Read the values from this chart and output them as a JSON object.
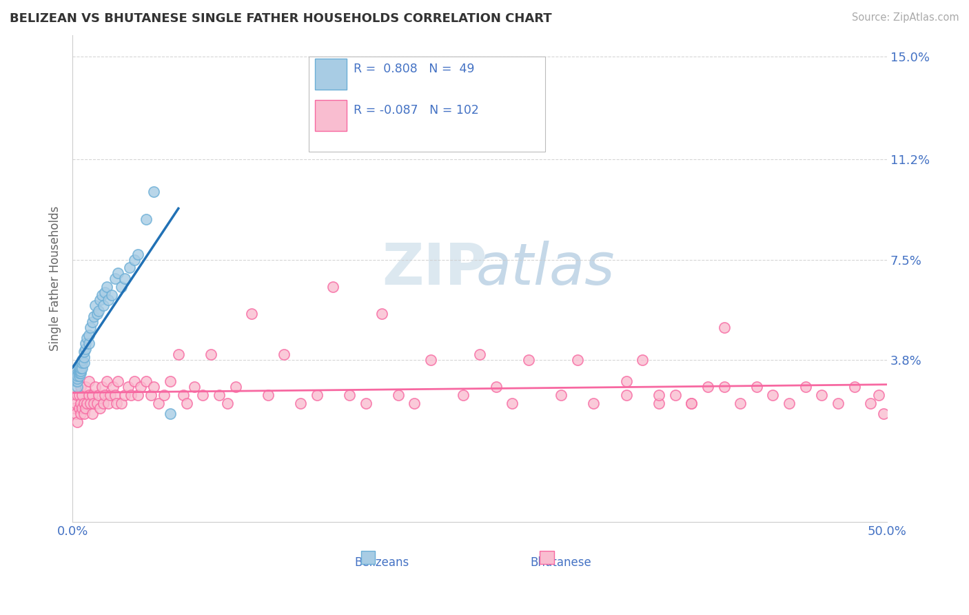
{
  "title": "BELIZEAN VS BHUTANESE SINGLE FATHER HOUSEHOLDS CORRELATION CHART",
  "source": "Source: ZipAtlas.com",
  "ylabel": "Single Father Households",
  "xlim": [
    0.0,
    0.5
  ],
  "ylim": [
    -0.022,
    0.158
  ],
  "belizean_R": 0.808,
  "belizean_N": 49,
  "bhutanese_R": -0.087,
  "bhutanese_N": 102,
  "belizean_color": "#a8cce4",
  "belizean_edge_color": "#6baed6",
  "bhutanese_color": "#f9bdd0",
  "bhutanese_edge_color": "#f768a1",
  "belizean_line_color": "#2171b5",
  "bhutanese_line_color": "#f768a1",
  "watermark_zip": "ZIP",
  "watermark_atlas": "atlas",
  "watermark_color": "#dce8f0",
  "watermark_atlas_color": "#c5d8e8",
  "legend_blue_label": "Belizeans",
  "legend_pink_label": "Bhutanese",
  "background_color": "#ffffff",
  "grid_color": "#cccccc",
  "title_color": "#333333",
  "axis_label_color": "#4472c4",
  "ytick_vals": [
    0.038,
    0.075,
    0.112,
    0.15
  ],
  "ytick_labels": [
    "3.8%",
    "7.5%",
    "11.2%",
    "15.0%"
  ],
  "xtick_vals": [
    0.0,
    0.5
  ],
  "xtick_labels": [
    "0.0%",
    "50.0%"
  ],
  "belizean_x": [
    0.002,
    0.002,
    0.002,
    0.003,
    0.003,
    0.003,
    0.003,
    0.003,
    0.004,
    0.004,
    0.004,
    0.004,
    0.005,
    0.005,
    0.005,
    0.006,
    0.006,
    0.006,
    0.007,
    0.007,
    0.007,
    0.008,
    0.008,
    0.009,
    0.01,
    0.01,
    0.011,
    0.012,
    0.013,
    0.014,
    0.015,
    0.016,
    0.017,
    0.018,
    0.019,
    0.02,
    0.021,
    0.022,
    0.024,
    0.026,
    0.028,
    0.03,
    0.032,
    0.035,
    0.038,
    0.04,
    0.045,
    0.05,
    0.06
  ],
  "belizean_y": [
    0.03,
    0.031,
    0.032,
    0.028,
    0.03,
    0.031,
    0.033,
    0.032,
    0.032,
    0.033,
    0.034,
    0.035,
    0.033,
    0.034,
    0.035,
    0.035,
    0.037,
    0.038,
    0.037,
    0.039,
    0.041,
    0.042,
    0.044,
    0.046,
    0.044,
    0.047,
    0.05,
    0.052,
    0.054,
    0.058,
    0.055,
    0.056,
    0.06,
    0.062,
    0.058,
    0.063,
    0.065,
    0.06,
    0.062,
    0.068,
    0.07,
    0.065,
    0.068,
    0.072,
    0.075,
    0.077,
    0.09,
    0.1,
    0.018
  ],
  "bhutanese_x": [
    0.001,
    0.002,
    0.002,
    0.003,
    0.003,
    0.003,
    0.004,
    0.004,
    0.005,
    0.005,
    0.005,
    0.006,
    0.006,
    0.007,
    0.007,
    0.008,
    0.008,
    0.009,
    0.01,
    0.01,
    0.011,
    0.012,
    0.012,
    0.013,
    0.014,
    0.015,
    0.016,
    0.017,
    0.018,
    0.019,
    0.02,
    0.021,
    0.022,
    0.023,
    0.025,
    0.026,
    0.027,
    0.028,
    0.03,
    0.032,
    0.034,
    0.036,
    0.038,
    0.04,
    0.042,
    0.045,
    0.048,
    0.05,
    0.053,
    0.056,
    0.06,
    0.065,
    0.068,
    0.07,
    0.075,
    0.08,
    0.085,
    0.09,
    0.095,
    0.1,
    0.11,
    0.12,
    0.13,
    0.14,
    0.15,
    0.16,
    0.17,
    0.18,
    0.19,
    0.2,
    0.21,
    0.22,
    0.24,
    0.25,
    0.26,
    0.27,
    0.28,
    0.3,
    0.31,
    0.32,
    0.34,
    0.35,
    0.36,
    0.37,
    0.38,
    0.39,
    0.4,
    0.41,
    0.42,
    0.43,
    0.44,
    0.45,
    0.46,
    0.47,
    0.48,
    0.49,
    0.495,
    0.498,
    0.34,
    0.36,
    0.38,
    0.4
  ],
  "bhutanese_y": [
    0.02,
    0.018,
    0.022,
    0.015,
    0.025,
    0.03,
    0.02,
    0.025,
    0.018,
    0.022,
    0.028,
    0.02,
    0.025,
    0.018,
    0.022,
    0.02,
    0.028,
    0.022,
    0.025,
    0.03,
    0.022,
    0.018,
    0.025,
    0.022,
    0.028,
    0.022,
    0.025,
    0.02,
    0.028,
    0.022,
    0.025,
    0.03,
    0.022,
    0.025,
    0.028,
    0.025,
    0.022,
    0.03,
    0.022,
    0.025,
    0.028,
    0.025,
    0.03,
    0.025,
    0.028,
    0.03,
    0.025,
    0.028,
    0.022,
    0.025,
    0.03,
    0.04,
    0.025,
    0.022,
    0.028,
    0.025,
    0.04,
    0.025,
    0.022,
    0.028,
    0.055,
    0.025,
    0.04,
    0.022,
    0.025,
    0.065,
    0.025,
    0.022,
    0.055,
    0.025,
    0.022,
    0.038,
    0.025,
    0.04,
    0.028,
    0.022,
    0.038,
    0.025,
    0.038,
    0.022,
    0.025,
    0.038,
    0.022,
    0.025,
    0.022,
    0.028,
    0.05,
    0.022,
    0.028,
    0.025,
    0.022,
    0.028,
    0.025,
    0.022,
    0.028,
    0.022,
    0.025,
    0.018,
    0.03,
    0.025,
    0.022,
    0.028
  ]
}
